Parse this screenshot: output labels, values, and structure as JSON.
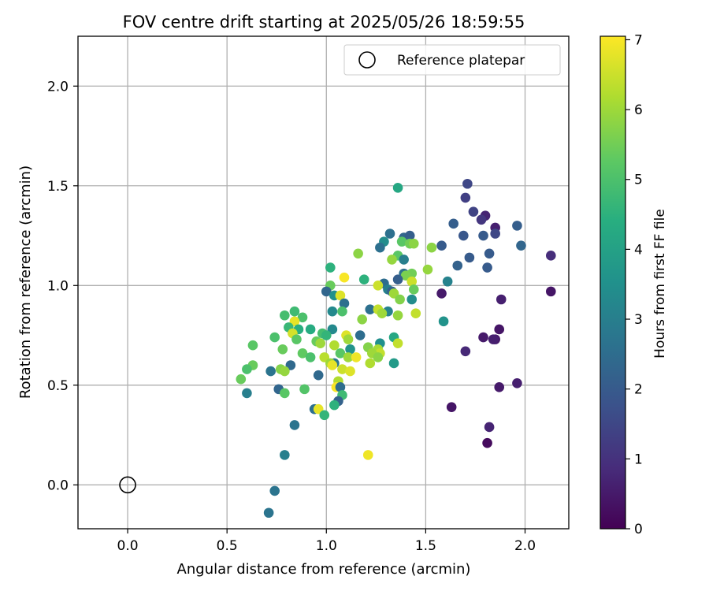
{
  "chart_data": {
    "type": "scatter",
    "title": "FOV centre drift starting at 2025/05/26 18:59:55",
    "xlabel": "Angular distance from reference (arcmin)",
    "ylabel": "Rotation from reference (arcmin)",
    "xlim": [
      -0.25,
      2.22
    ],
    "ylim": [
      -0.22,
      2.25
    ],
    "x_ticks": [
      0.0,
      0.5,
      1.0,
      1.5,
      2.0
    ],
    "y_ticks": [
      0.0,
      0.5,
      1.0,
      1.5,
      2.0
    ],
    "x_tick_labels": [
      "0.0",
      "0.5",
      "1.0",
      "1.5",
      "2.0"
    ],
    "y_tick_labels": [
      "0.0",
      "0.5",
      "1.0",
      "1.5",
      "2.0"
    ],
    "grid": true,
    "legend": {
      "position": "top-right",
      "label": "Reference platepar"
    },
    "reference_point": {
      "x": 0.0,
      "y": 0.0
    },
    "colorbar": {
      "label": "Hours from first FF file",
      "colormap": "viridis",
      "min": 0,
      "max": 7.05,
      "ticks": [
        0,
        1,
        2,
        3,
        4,
        5,
        6,
        7
      ],
      "tick_labels": [
        "0",
        "1",
        "2",
        "3",
        "4",
        "5",
        "6",
        "7"
      ]
    },
    "points": [
      {
        "x": 1.71,
        "y": 1.51,
        "h": 1.5
      },
      {
        "x": 1.7,
        "y": 1.44,
        "h": 1.3
      },
      {
        "x": 1.74,
        "y": 1.37,
        "h": 1.4
      },
      {
        "x": 1.8,
        "y": 1.35,
        "h": 0.7
      },
      {
        "x": 1.78,
        "y": 1.33,
        "h": 1.1
      },
      {
        "x": 1.85,
        "y": 1.29,
        "h": 0.6
      },
      {
        "x": 1.85,
        "y": 1.26,
        "h": 1.5
      },
      {
        "x": 1.69,
        "y": 1.25,
        "h": 1.9
      },
      {
        "x": 1.79,
        "y": 1.25,
        "h": 2.0
      },
      {
        "x": 1.64,
        "y": 1.31,
        "h": 2.1
      },
      {
        "x": 1.96,
        "y": 1.3,
        "h": 2.1
      },
      {
        "x": 1.58,
        "y": 1.2,
        "h": 2.0
      },
      {
        "x": 1.98,
        "y": 1.2,
        "h": 2.3
      },
      {
        "x": 1.82,
        "y": 1.16,
        "h": 2.0
      },
      {
        "x": 1.72,
        "y": 1.14,
        "h": 2.0
      },
      {
        "x": 2.13,
        "y": 1.15,
        "h": 0.9
      },
      {
        "x": 1.66,
        "y": 1.1,
        "h": 2.2
      },
      {
        "x": 1.81,
        "y": 1.09,
        "h": 2.0
      },
      {
        "x": 1.61,
        "y": 1.02,
        "h": 3.1
      },
      {
        "x": 1.58,
        "y": 0.96,
        "h": 0.5
      },
      {
        "x": 2.13,
        "y": 0.97,
        "h": 0.4
      },
      {
        "x": 1.88,
        "y": 0.93,
        "h": 0.6
      },
      {
        "x": 1.59,
        "y": 0.82,
        "h": 3.6
      },
      {
        "x": 1.87,
        "y": 0.78,
        "h": 0.4
      },
      {
        "x": 1.85,
        "y": 0.73,
        "h": 0.5
      },
      {
        "x": 1.79,
        "y": 0.74,
        "h": 0.5
      },
      {
        "x": 1.84,
        "y": 0.73,
        "h": 0.6
      },
      {
        "x": 1.7,
        "y": 0.67,
        "h": 0.8
      },
      {
        "x": 1.87,
        "y": 0.49,
        "h": 0.5
      },
      {
        "x": 1.96,
        "y": 0.51,
        "h": 0.6
      },
      {
        "x": 1.63,
        "y": 0.39,
        "h": 0.4
      },
      {
        "x": 1.82,
        "y": 0.29,
        "h": 0.7
      },
      {
        "x": 1.81,
        "y": 0.21,
        "h": 0.2
      },
      {
        "x": 1.36,
        "y": 1.49,
        "h": 4.2
      },
      {
        "x": 1.32,
        "y": 1.26,
        "h": 2.6
      },
      {
        "x": 1.39,
        "y": 1.24,
        "h": 2.3
      },
      {
        "x": 1.42,
        "y": 1.25,
        "h": 2.1
      },
      {
        "x": 1.29,
        "y": 1.22,
        "h": 3.4
      },
      {
        "x": 1.38,
        "y": 1.22,
        "h": 5.2
      },
      {
        "x": 1.42,
        "y": 1.21,
        "h": 5.5
      },
      {
        "x": 1.44,
        "y": 1.21,
        "h": 5.8
      },
      {
        "x": 1.27,
        "y": 1.19,
        "h": 2.6
      },
      {
        "x": 1.53,
        "y": 1.19,
        "h": 5.8
      },
      {
        "x": 1.36,
        "y": 1.15,
        "h": 5.2
      },
      {
        "x": 1.33,
        "y": 1.13,
        "h": 5.9
      },
      {
        "x": 1.39,
        "y": 1.13,
        "h": 3.0
      },
      {
        "x": 1.51,
        "y": 1.08,
        "h": 5.9
      },
      {
        "x": 1.39,
        "y": 1.06,
        "h": 2.6
      },
      {
        "x": 1.43,
        "y": 1.06,
        "h": 5.5
      },
      {
        "x": 1.4,
        "y": 1.05,
        "h": 5.6
      },
      {
        "x": 1.36,
        "y": 1.03,
        "h": 2.1
      },
      {
        "x": 1.43,
        "y": 1.02,
        "h": 6.5
      },
      {
        "x": 1.29,
        "y": 1.01,
        "h": 2.5
      },
      {
        "x": 1.26,
        "y": 1.0,
        "h": 6.5
      },
      {
        "x": 1.31,
        "y": 0.98,
        "h": 3.0
      },
      {
        "x": 1.33,
        "y": 0.97,
        "h": 2.2
      },
      {
        "x": 1.44,
        "y": 0.98,
        "h": 5.4
      },
      {
        "x": 1.34,
        "y": 0.96,
        "h": 6.0
      },
      {
        "x": 1.37,
        "y": 0.93,
        "h": 5.7
      },
      {
        "x": 1.43,
        "y": 0.93,
        "h": 3.4
      },
      {
        "x": 1.22,
        "y": 0.88,
        "h": 2.6
      },
      {
        "x": 1.26,
        "y": 0.88,
        "h": 6.4
      },
      {
        "x": 1.31,
        "y": 0.87,
        "h": 3.1
      },
      {
        "x": 1.28,
        "y": 0.86,
        "h": 6.0
      },
      {
        "x": 1.36,
        "y": 0.85,
        "h": 5.9
      },
      {
        "x": 1.45,
        "y": 0.86,
        "h": 6.4
      },
      {
        "x": 1.18,
        "y": 0.83,
        "h": 5.8
      },
      {
        "x": 1.17,
        "y": 0.75,
        "h": 2.5
      },
      {
        "x": 1.34,
        "y": 0.74,
        "h": 4.2
      },
      {
        "x": 1.27,
        "y": 0.71,
        "h": 3.5
      },
      {
        "x": 1.36,
        "y": 0.71,
        "h": 6.4
      },
      {
        "x": 1.21,
        "y": 0.69,
        "h": 5.7
      },
      {
        "x": 1.26,
        "y": 0.68,
        "h": 6.1
      },
      {
        "x": 1.27,
        "y": 0.66,
        "h": 6.4
      },
      {
        "x": 1.23,
        "y": 0.66,
        "h": 6.0
      },
      {
        "x": 1.26,
        "y": 0.64,
        "h": 5.8
      },
      {
        "x": 1.22,
        "y": 0.61,
        "h": 6.2
      },
      {
        "x": 1.34,
        "y": 0.61,
        "h": 3.8
      },
      {
        "x": 1.21,
        "y": 0.15,
        "h": 6.9
      },
      {
        "x": 1.16,
        "y": 1.16,
        "h": 5.8
      },
      {
        "x": 1.02,
        "y": 1.09,
        "h": 4.5
      },
      {
        "x": 1.09,
        "y": 1.04,
        "h": 7.0
      },
      {
        "x": 1.02,
        "y": 1.0,
        "h": 5.4
      },
      {
        "x": 1.19,
        "y": 1.03,
        "h": 4.5
      },
      {
        "x": 1.0,
        "y": 0.97,
        "h": 2.3
      },
      {
        "x": 1.04,
        "y": 0.95,
        "h": 3.5
      },
      {
        "x": 1.07,
        "y": 0.95,
        "h": 6.7
      },
      {
        "x": 1.09,
        "y": 0.91,
        "h": 2.6
      },
      {
        "x": 1.03,
        "y": 0.87,
        "h": 3.3
      },
      {
        "x": 1.08,
        "y": 0.87,
        "h": 5.0
      },
      {
        "x": 0.84,
        "y": 0.87,
        "h": 4.8
      },
      {
        "x": 0.79,
        "y": 0.85,
        "h": 4.9
      },
      {
        "x": 0.88,
        "y": 0.84,
        "h": 5.0
      },
      {
        "x": 0.84,
        "y": 0.82,
        "h": 6.8
      },
      {
        "x": 0.86,
        "y": 0.78,
        "h": 4.4
      },
      {
        "x": 0.92,
        "y": 0.78,
        "h": 4.3
      },
      {
        "x": 0.81,
        "y": 0.79,
        "h": 4.7
      },
      {
        "x": 0.83,
        "y": 0.76,
        "h": 6.6
      },
      {
        "x": 1.03,
        "y": 0.78,
        "h": 3.3
      },
      {
        "x": 0.98,
        "y": 0.76,
        "h": 4.9
      },
      {
        "x": 1.0,
        "y": 0.75,
        "h": 4.6
      },
      {
        "x": 0.74,
        "y": 0.74,
        "h": 5.0
      },
      {
        "x": 0.85,
        "y": 0.73,
        "h": 5.2
      },
      {
        "x": 0.95,
        "y": 0.72,
        "h": 5.4
      },
      {
        "x": 1.1,
        "y": 0.75,
        "h": 6.7
      },
      {
        "x": 1.11,
        "y": 0.73,
        "h": 6.0
      },
      {
        "x": 0.97,
        "y": 0.71,
        "h": 6.0
      },
      {
        "x": 1.04,
        "y": 0.7,
        "h": 6.2
      },
      {
        "x": 1.12,
        "y": 0.68,
        "h": 3.6
      },
      {
        "x": 0.78,
        "y": 0.68,
        "h": 5.4
      },
      {
        "x": 0.63,
        "y": 0.7,
        "h": 5.2
      },
      {
        "x": 0.88,
        "y": 0.66,
        "h": 5.3
      },
      {
        "x": 1.07,
        "y": 0.66,
        "h": 5.2
      },
      {
        "x": 0.92,
        "y": 0.64,
        "h": 5.0
      },
      {
        "x": 0.99,
        "y": 0.64,
        "h": 6.3
      },
      {
        "x": 1.11,
        "y": 0.64,
        "h": 6.0
      },
      {
        "x": 1.15,
        "y": 0.64,
        "h": 6.9
      },
      {
        "x": 1.04,
        "y": 0.61,
        "h": 2.8
      },
      {
        "x": 1.02,
        "y": 0.61,
        "h": 6.0
      },
      {
        "x": 1.03,
        "y": 0.6,
        "h": 6.8
      },
      {
        "x": 0.82,
        "y": 0.6,
        "h": 2.4
      },
      {
        "x": 1.08,
        "y": 0.58,
        "h": 6.5
      },
      {
        "x": 1.12,
        "y": 0.57,
        "h": 6.7
      },
      {
        "x": 0.63,
        "y": 0.6,
        "h": 5.4
      },
      {
        "x": 0.6,
        "y": 0.58,
        "h": 5.0
      },
      {
        "x": 0.77,
        "y": 0.58,
        "h": 5.7
      },
      {
        "x": 0.79,
        "y": 0.57,
        "h": 5.9
      },
      {
        "x": 0.72,
        "y": 0.57,
        "h": 2.7
      },
      {
        "x": 0.57,
        "y": 0.53,
        "h": 5.4
      },
      {
        "x": 0.96,
        "y": 0.55,
        "h": 2.4
      },
      {
        "x": 1.06,
        "y": 0.52,
        "h": 6.2
      },
      {
        "x": 1.05,
        "y": 0.49,
        "h": 7.0
      },
      {
        "x": 1.07,
        "y": 0.49,
        "h": 2.5
      },
      {
        "x": 0.76,
        "y": 0.48,
        "h": 2.3
      },
      {
        "x": 0.79,
        "y": 0.46,
        "h": 5.2
      },
      {
        "x": 0.89,
        "y": 0.48,
        "h": 5.1
      },
      {
        "x": 1.08,
        "y": 0.45,
        "h": 4.8
      },
      {
        "x": 0.6,
        "y": 0.46,
        "h": 3.0
      },
      {
        "x": 1.06,
        "y": 0.42,
        "h": 2.2
      },
      {
        "x": 1.04,
        "y": 0.4,
        "h": 4.5
      },
      {
        "x": 0.94,
        "y": 0.38,
        "h": 2.6
      },
      {
        "x": 0.96,
        "y": 0.38,
        "h": 6.8
      },
      {
        "x": 0.99,
        "y": 0.35,
        "h": 4.6
      },
      {
        "x": 0.84,
        "y": 0.3,
        "h": 2.7
      },
      {
        "x": 0.79,
        "y": 0.15,
        "h": 3.0
      },
      {
        "x": 0.74,
        "y": -0.03,
        "h": 2.7
      },
      {
        "x": 0.71,
        "y": -0.14,
        "h": 2.7
      }
    ]
  }
}
